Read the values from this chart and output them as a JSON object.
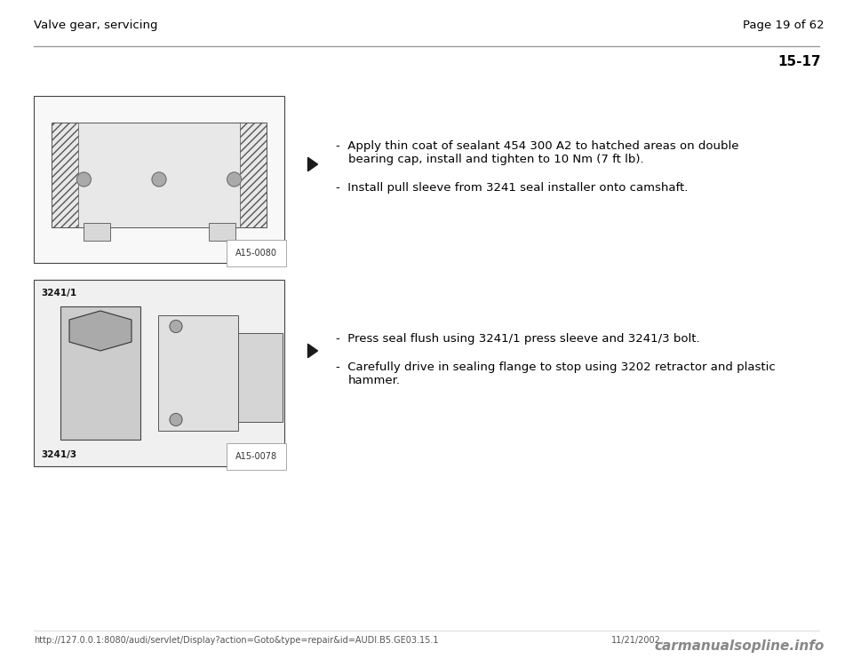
{
  "page_title_left": "Valve gear, servicing",
  "page_title_right": "Page 19 of 62",
  "section_number": "15-17",
  "bg_color": "#ffffff",
  "header_line_color": "#999999",
  "text_color": "#000000",
  "footer_url": "http://127.0.0.1:8080/audi/servlet/Display?action=Goto&type=repair&id=AUDI.B5.GE03.15.1",
  "footer_date": "11/21/2002",
  "footer_watermark": "carmanualsopline.info",
  "block1_bullet1_line1": "Apply thin coat of sealant 454 300 A2 to hatched areas on double",
  "block1_bullet1_line2": "bearing cap, install and tighten to 10 Nm (7 ft lb).",
  "block1_bullet2": "Install pull sleeve from 3241 seal installer onto camshaft.",
  "block2_bullet1": "Press seal flush using 3241/1 press sleeve and 3241/3 bolt.",
  "block2_bullet2_line1": "Carefully drive in sealing flange to stop using 3202 retractor and plastic",
  "block2_bullet2_line2": "hammer.",
  "img1_label": "A15-0080",
  "img2_label": "A15-0078",
  "img2_label1": "3241/1",
  "img2_label2": "3241/3",
  "font_size_header": 9.5,
  "font_size_body": 9.5,
  "font_size_section": 11,
  "font_size_footer": 7,
  "font_size_img_label": 7,
  "arrow_color": "#1a1a1a",
  "border_color": "#444444"
}
